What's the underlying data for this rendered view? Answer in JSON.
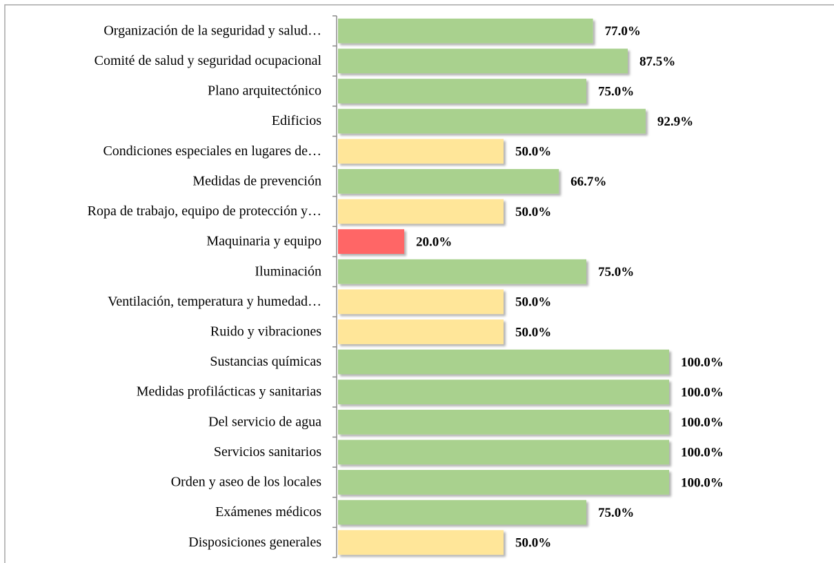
{
  "chart_data": {
    "type": "bar",
    "orientation": "horizontal",
    "categories": [
      "Organización de la seguridad y salud…",
      "Comité de salud y seguridad ocupacional",
      "Plano arquitectónico",
      "Edificios",
      "Condiciones especiales en lugares de…",
      "Medidas de prevención",
      "Ropa de trabajo, equipo de protección y…",
      "Maquinaria y equipo",
      "Iluminación",
      "Ventilación, temperatura y humedad…",
      "Ruido y vibraciones",
      "Sustancias químicas",
      "Medidas profilácticas y sanitarias",
      "Del servicio de agua",
      "Servicios sanitarios",
      "Orden y aseo de los locales",
      "Exámenes médicos",
      "Disposiciones generales"
    ],
    "values": [
      77.0,
      87.5,
      75.0,
      92.9,
      50.0,
      66.7,
      50.0,
      20.0,
      75.0,
      50.0,
      50.0,
      100.0,
      100.0,
      100.0,
      100.0,
      100.0,
      75.0,
      50.0
    ],
    "value_labels": [
      "77.0%",
      "87.5%",
      "75.0%",
      "92.9%",
      "50.0%",
      "66.7%",
      "50.0%",
      "20.0%",
      "75.0%",
      "50.0%",
      "50.0%",
      "100.0%",
      "100.0%",
      "100.0%",
      "100.0%",
      "100.0%",
      "75.0%",
      "50.0%"
    ],
    "colors": [
      "#a9d18e",
      "#a9d18e",
      "#a9d18e",
      "#a9d18e",
      "#ffe699",
      "#a9d18e",
      "#ffe699",
      "#ff6666",
      "#a9d18e",
      "#ffe699",
      "#ffe699",
      "#a9d18e",
      "#a9d18e",
      "#a9d18e",
      "#a9d18e",
      "#a9d18e",
      "#a9d18e",
      "#ffe699"
    ],
    "xlim": [
      0,
      100
    ]
  }
}
